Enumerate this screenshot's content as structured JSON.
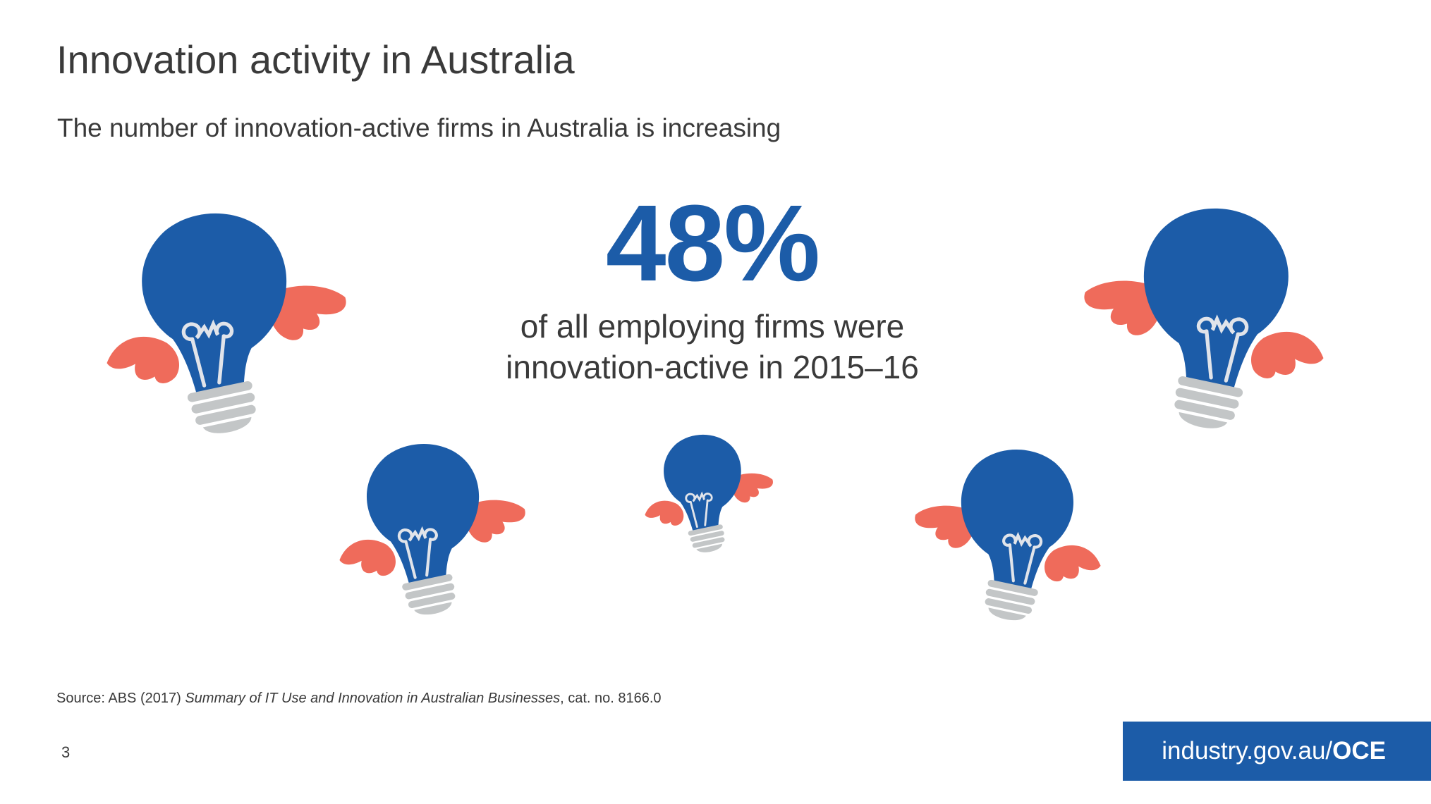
{
  "slide": {
    "title": "Innovation activity in Australia",
    "subtitle": "The number of innovation-active firms in Australia is increasing"
  },
  "stat": {
    "value": "48%",
    "caption_line1": "of all employing firms were",
    "caption_line2": "innovation-active in 2015–16"
  },
  "source": {
    "prefix": "Source: ABS (2017) ",
    "publication": "Summary of IT Use and Innovation in Australian Businesses",
    "suffix": ", cat. no. 8166.0"
  },
  "footer": {
    "page_number": "3",
    "site_prefix": "industry.gov.au/",
    "site_suffix": "OCE"
  },
  "colors": {
    "brand_blue": "#1c5ca8",
    "wing_coral": "#ef6b5b",
    "base_grey": "#c3c6c7",
    "text_dark": "#3a3a3a"
  },
  "icons": [
    "flying-lightbulb-icon"
  ]
}
